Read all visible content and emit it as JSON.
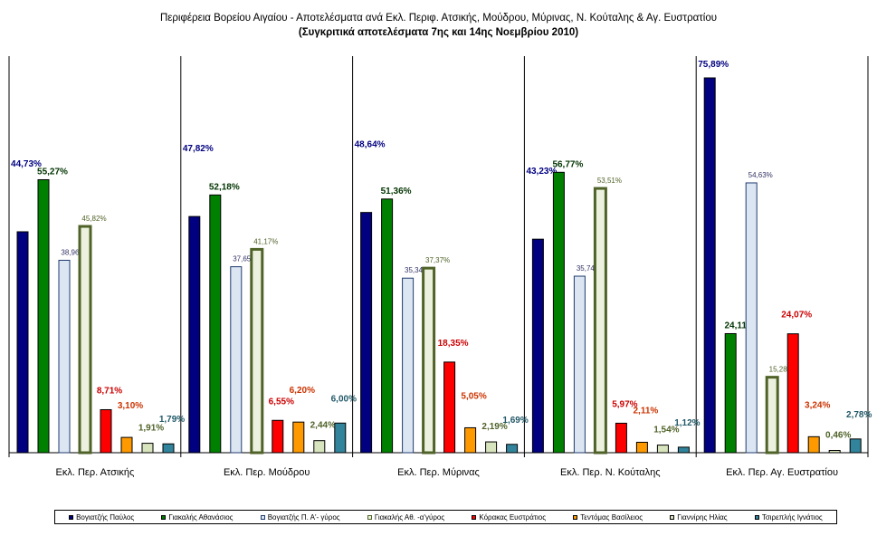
{
  "title_line1": "Περιφέρεια Βορείου Αιγαίου - Αποτελέσματα ανά Εκλ. Περιφ. Ατσικής, Μούδρου, Μύρινας, Ν. Κούταλης & Αγ. Ευστρατίου",
  "title_line2": "(Συγκριτικά αποτελέσματα 7ης και 14ης Νοεμβρίου 2010)",
  "chart_data": {
    "type": "bar",
    "categories": [
      "Εκλ. Περ. Ατσικής",
      "Εκλ. Περ. Μούδρου",
      "Εκλ. Περ. Μύρινας",
      "Εκλ. Περ. Ν. Κούταλης",
      "Εκλ. Περ. Αγ. Ευστρατίου"
    ],
    "ylim": [
      0,
      80
    ],
    "legend_position": "bottom",
    "grid": false,
    "series": [
      {
        "name": "Βογιατζής Παύλος",
        "fill": "#000080",
        "stroke": "#000000",
        "label_color": "#000080",
        "values": [
          44.73,
          47.82,
          48.64,
          43.23,
          75.89
        ],
        "labels": [
          "44,73%",
          "47,82%",
          "48,64%",
          "43,23%",
          "75,89%"
        ]
      },
      {
        "name": "Γιακαλής Αθανάσιος",
        "fill": "#008000",
        "stroke": "#000000",
        "label_color": "#003300",
        "values": [
          55.27,
          52.18,
          51.36,
          56.77,
          24.11
        ],
        "labels": [
          "55,27%",
          "52,18%",
          "51,36%",
          "56,77%",
          "24,11%"
        ]
      },
      {
        "name": "Βογιατζής Π. Α'- γύρος",
        "fill": "#dce6f2",
        "stroke": "#1f3a6e",
        "label_color": "#333366",
        "values": [
          38.96,
          37.65,
          35.34,
          35.74,
          54.63
        ],
        "labels": [
          "38,96%",
          "37,65%",
          "35,34%",
          "35,74%",
          "54,63%"
        ]
      },
      {
        "name": "Γιακαλής Αθ. -α'γύρος",
        "fill": "#ebf1de",
        "stroke": "#4f6228",
        "label_color": "#4f6228",
        "values": [
          45.82,
          41.17,
          37.37,
          53.51,
          15.28
        ],
        "labels": [
          "45,82%",
          "41,17%",
          "37,37%",
          "53,51%",
          "15,28%"
        ]
      },
      {
        "name": "Κόρακας Ευστράτιος",
        "fill": "#ff0000",
        "stroke": "#000000",
        "label_color": "#cc0000",
        "values": [
          8.71,
          6.55,
          18.35,
          5.97,
          24.07
        ],
        "labels": [
          "8,71%",
          "6,55%",
          "18,35%",
          "5,97%",
          "24,07%"
        ]
      },
      {
        "name": "Τεντόμας Βασίλειος",
        "fill": "#ff9900",
        "stroke": "#000000",
        "label_color": "#cc3300",
        "values": [
          3.1,
          6.2,
          5.05,
          2.11,
          3.24
        ],
        "labels": [
          "3,10%",
          "6,20%",
          "5,05%",
          "2,11%",
          "3,24%"
        ]
      },
      {
        "name": "Γιαννίρης Ηλίας",
        "fill": "#d7e4bd",
        "stroke": "#000000",
        "label_color": "#4f6228",
        "values": [
          1.91,
          2.44,
          2.19,
          1.54,
          0.46
        ],
        "labels": [
          "1,91%",
          "2,44%",
          "2,19%",
          "1,54%",
          "0,46%"
        ]
      },
      {
        "name": "Τσιρεπλής Ιγνάτιος",
        "fill": "#31849b",
        "stroke": "#000000",
        "label_color": "#215968",
        "values": [
          1.79,
          6.0,
          1.69,
          1.12,
          2.78
        ],
        "labels": [
          "1,79%",
          "6,00%",
          "1,69%",
          "1,12%",
          "2,78%"
        ]
      }
    ]
  }
}
